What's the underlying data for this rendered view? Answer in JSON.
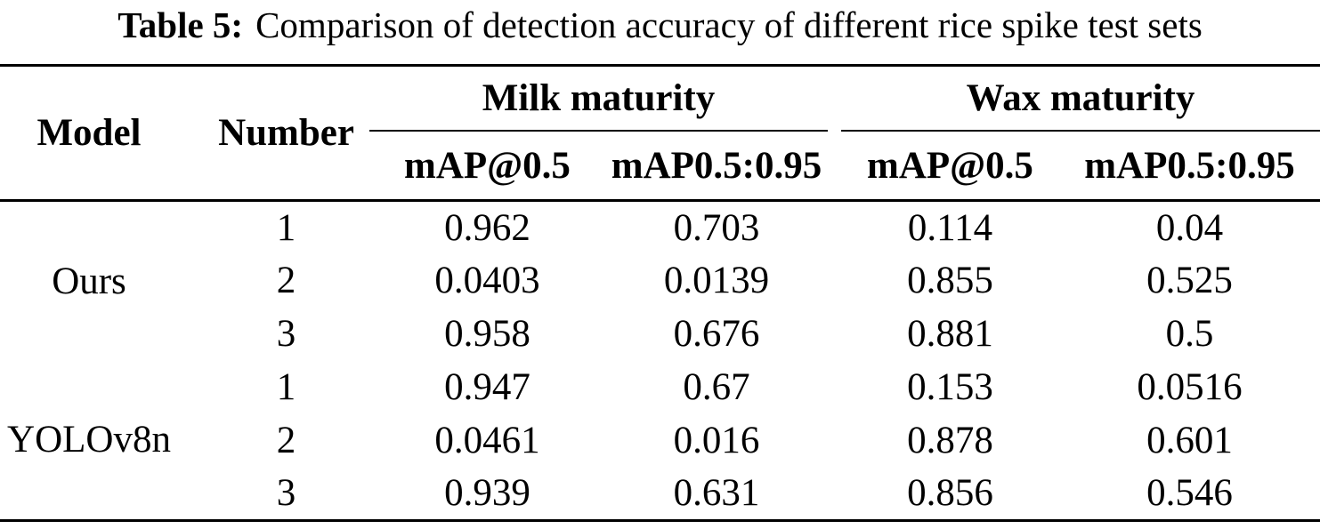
{
  "caption": {
    "label": "Table 5:",
    "text": "Comparison of detection accuracy of different rice spike test sets"
  },
  "header": {
    "model": "Model",
    "number": "Number",
    "groups": [
      {
        "label": "Milk maturity",
        "sub": [
          "mAP@0.5",
          "mAP0.5:0.95"
        ]
      },
      {
        "label": "Wax maturity",
        "sub": [
          "mAP@0.5",
          "mAP0.5:0.95"
        ]
      }
    ]
  },
  "body": {
    "groups": [
      {
        "model": "Ours",
        "rows": [
          {
            "number": "1",
            "values": [
              "0.962",
              "0.703",
              "0.114",
              "0.04"
            ]
          },
          {
            "number": "2",
            "values": [
              "0.0403",
              "0.0139",
              "0.855",
              "0.525"
            ]
          },
          {
            "number": "3",
            "values": [
              "0.958",
              "0.676",
              "0.881",
              "0.5"
            ]
          }
        ]
      },
      {
        "model": "YOLOv8n",
        "rows": [
          {
            "number": "1",
            "values": [
              "0.947",
              "0.67",
              "0.153",
              "0.0516"
            ]
          },
          {
            "number": "2",
            "values": [
              "0.0461",
              "0.016",
              "0.878",
              "0.601"
            ]
          },
          {
            "number": "3",
            "values": [
              "0.939",
              "0.631",
              "0.856",
              "0.546"
            ]
          }
        ]
      }
    ]
  },
  "chart_data": {
    "type": "table",
    "title": "Table 5: Comparison of detection accuracy of different rice spike test sets",
    "column_groups": [
      "",
      "",
      "Milk maturity",
      "Milk maturity",
      "Wax maturity",
      "Wax maturity"
    ],
    "columns": [
      "Model",
      "Number",
      "mAP@0.5",
      "mAP0.5:0.95",
      "mAP@0.5",
      "mAP0.5:0.95"
    ],
    "rows": [
      [
        "Ours",
        "1",
        0.962,
        0.703,
        0.114,
        0.04
      ],
      [
        "Ours",
        "2",
        0.0403,
        0.0139,
        0.855,
        0.525
      ],
      [
        "Ours",
        "3",
        0.958,
        0.676,
        0.881,
        0.5
      ],
      [
        "YOLOv8n",
        "1",
        0.947,
        0.67,
        0.153,
        0.0516
      ],
      [
        "YOLOv8n",
        "2",
        0.0461,
        0.016,
        0.878,
        0.601
      ],
      [
        "YOLOv8n",
        "3",
        0.939,
        0.631,
        0.856,
        0.546
      ]
    ]
  },
  "colors": {
    "text": "#000000",
    "background": "#ffffff",
    "rule": "#000000"
  }
}
